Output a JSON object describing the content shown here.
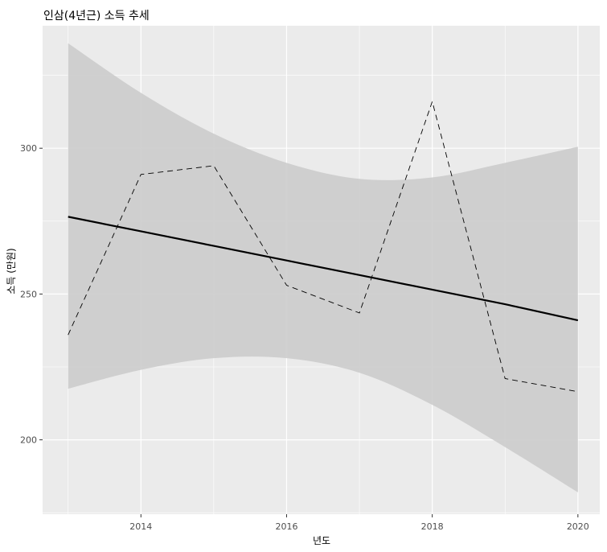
{
  "chart_data": {
    "type": "line",
    "title": "인삼(4년근) 소득 추세",
    "xlabel": "년도",
    "ylabel": "소득 (만원)",
    "x": [
      2013,
      2014,
      2015,
      2016,
      2017,
      2018,
      2019,
      2020
    ],
    "xlim": [
      2012.65,
      2020.3
    ],
    "ylim": [
      174.5,
      342
    ],
    "x_ticks": [
      2014,
      2016,
      2018,
      2020
    ],
    "y_ticks": [
      200,
      250,
      300
    ],
    "grid": true,
    "legend": "none",
    "series": [
      {
        "role": "observed",
        "style": "dashed",
        "values": [
          236,
          291,
          294,
          253,
          243.5,
          316,
          221,
          216.5
        ]
      },
      {
        "role": "linear-trend",
        "style": "solid",
        "values": [
          276.5,
          271.5,
          266.5,
          261.5,
          256.5,
          251.5,
          246.5,
          241
        ]
      },
      {
        "role": "confidence-band",
        "lower": [
          217.5,
          224,
          228,
          228,
          223,
          212,
          197.5,
          182
        ],
        "upper": [
          336,
          319,
          305,
          295,
          289.5,
          290,
          295,
          300.5
        ]
      }
    ],
    "colors": {
      "panel": "#ebebeb",
      "grid": "#ffffff",
      "band": "#cccccc",
      "line": "#000000"
    }
  }
}
